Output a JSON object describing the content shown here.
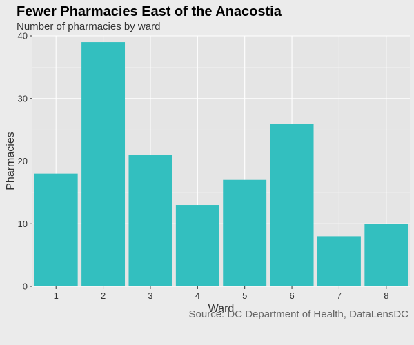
{
  "title": "Fewer Pharmacies East of the Anacostia",
  "subtitle": "Number of pharmacies by ward",
  "source": "Source: DC Department of Health, DataLensDC",
  "colors": {
    "bar": "#33bfbf",
    "panel": "#e5e5e5",
    "background": "#ebebeb",
    "grid": "#ebebeb"
  },
  "chart_data": {
    "type": "bar",
    "categories": [
      "1",
      "2",
      "3",
      "4",
      "5",
      "6",
      "7",
      "8"
    ],
    "values": [
      18,
      39,
      21,
      13,
      17,
      26,
      8,
      10
    ],
    "title": "Fewer Pharmacies East of the Anacostia",
    "subtitle": "Number of pharmacies by ward",
    "xlabel": "Ward",
    "ylabel": "Pharmacies",
    "ylim": [
      0,
      40
    ],
    "yticks": [
      0,
      10,
      20,
      30,
      40
    ],
    "grid": true,
    "legend": "none"
  }
}
